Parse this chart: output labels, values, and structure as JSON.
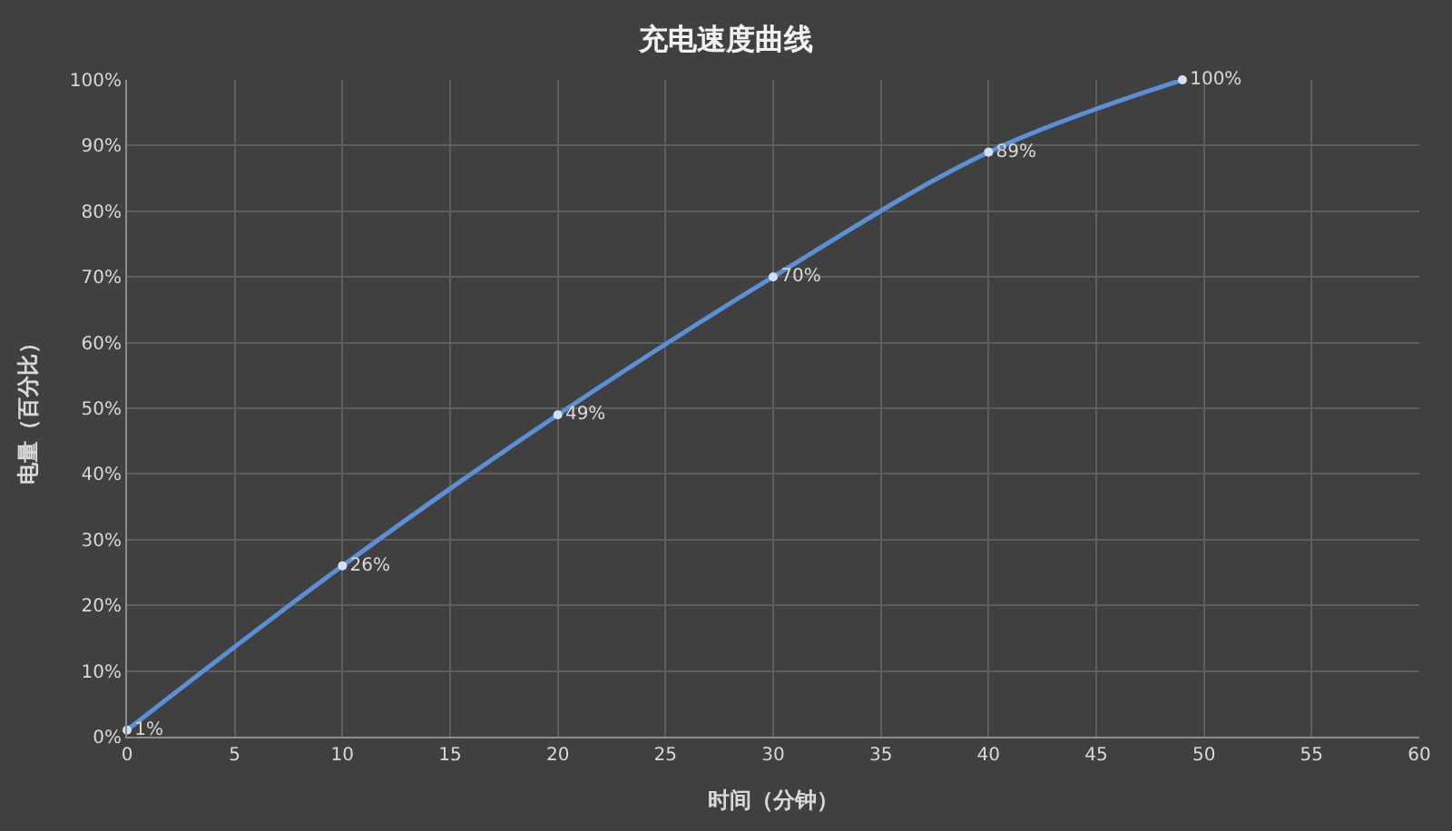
{
  "chart_data": {
    "type": "line",
    "title": "充电速度曲线",
    "xlabel": "时间（分钟）",
    "ylabel": "电量（百分比）",
    "x": [
      0,
      10,
      20,
      30,
      40,
      49
    ],
    "series": [
      {
        "color": "#5b8fd6",
        "values": [
          1,
          26,
          49,
          70,
          89,
          100
        ],
        "value_labels": [
          "1%",
          "26%",
          "49%",
          "70%",
          "89%",
          "100%"
        ]
      }
    ],
    "xlim": [
      0,
      60
    ],
    "xticks": [
      0,
      5,
      10,
      15,
      20,
      25,
      30,
      35,
      40,
      45,
      50,
      55,
      60
    ],
    "ylim": [
      0,
      100
    ],
    "yticks": [
      {
        "value": 0,
        "label": "0%"
      },
      {
        "value": 10,
        "label": "10%"
      },
      {
        "value": 20,
        "label": "20%"
      },
      {
        "value": 30,
        "label": "30%"
      },
      {
        "value": 40,
        "label": "40%"
      },
      {
        "value": 50,
        "label": "50%"
      },
      {
        "value": 60,
        "label": "60%"
      },
      {
        "value": 70,
        "label": "70%"
      },
      {
        "value": 80,
        "label": "80%"
      },
      {
        "value": 90,
        "label": "90%"
      },
      {
        "value": 100,
        "label": "100%"
      }
    ],
    "grid": true,
    "marker": "circle",
    "line_style": "solid"
  }
}
